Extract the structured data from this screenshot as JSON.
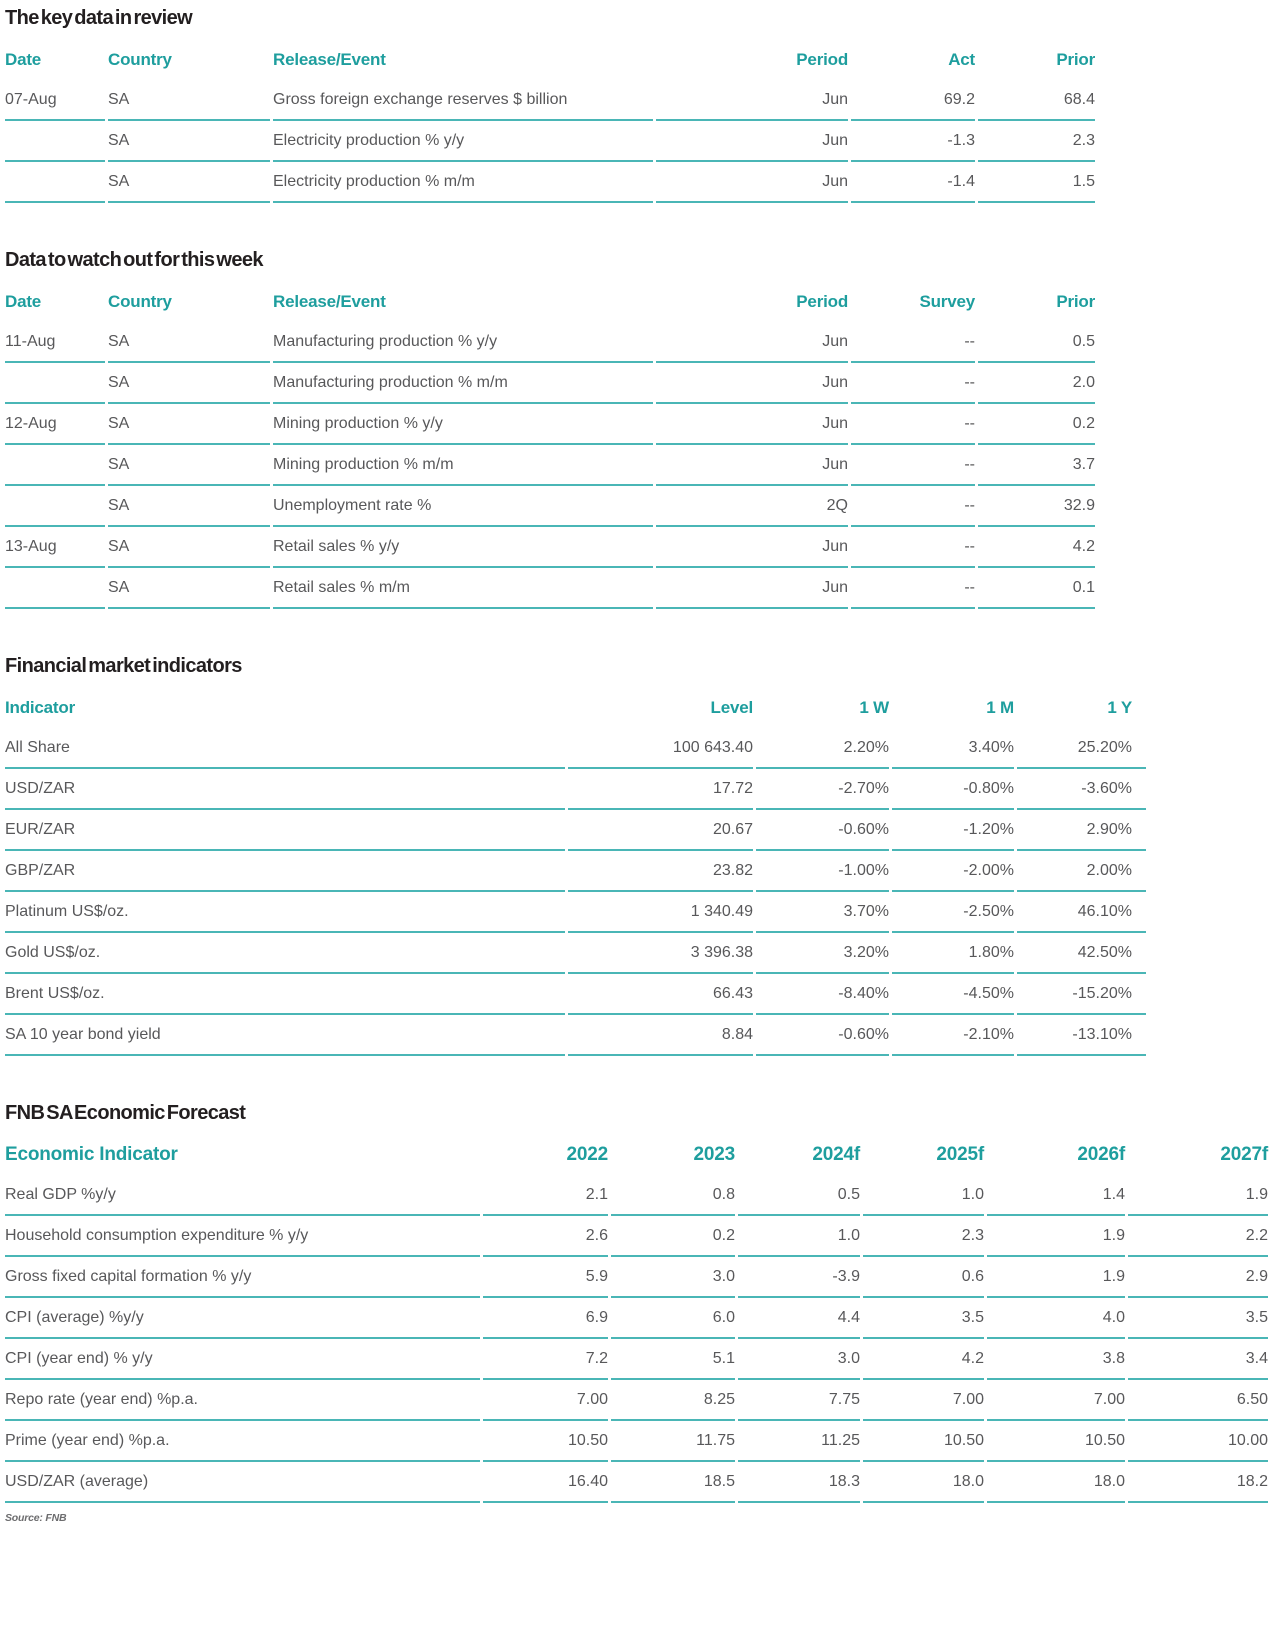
{
  "colors": {
    "accent_teal": "#1e9e9e",
    "rule_teal": "#4ab6b6",
    "body_text": "#58585a",
    "title_text": "#231f20"
  },
  "key_data_review": {
    "title": "The key data in review",
    "columns": [
      "Date",
      "Country",
      "Release/Event",
      "Period",
      "Act",
      "Prior"
    ],
    "rows": [
      [
        "07-Aug",
        "SA",
        "Gross foreign exchange reserves $ billion",
        "Jun",
        "69.2",
        "68.4"
      ],
      [
        "",
        "SA",
        "Electricity production % y/y",
        "Jun",
        "-1.3",
        "2.3"
      ],
      [
        "",
        "SA",
        "Electricity production % m/m",
        "Jun",
        "-1.4",
        "1.5"
      ]
    ]
  },
  "week_ahead": {
    "title": "Data to watch out for this week",
    "columns": [
      "Date",
      "Country",
      "Release/Event",
      "Period",
      "Survey",
      "Prior"
    ],
    "rows": [
      [
        "11-Aug",
        "SA",
        "Manufacturing production % y/y",
        "Jun",
        "--",
        "0.5"
      ],
      [
        "",
        "SA",
        "Manufacturing production % m/m",
        "Jun",
        "--",
        "2.0"
      ],
      [
        "12-Aug",
        "SA",
        "Mining production % y/y",
        "Jun",
        "--",
        "0.2"
      ],
      [
        "",
        "SA",
        "Mining production % m/m",
        "Jun",
        "--",
        "3.7"
      ],
      [
        "",
        "SA",
        "Unemployment rate %",
        "2Q",
        "--",
        "32.9"
      ],
      [
        "13-Aug",
        "SA",
        "Retail sales % y/y",
        "Jun",
        "--",
        "4.2"
      ],
      [
        "",
        "SA",
        "Retail sales % m/m",
        "Jun",
        "--",
        "0.1"
      ]
    ]
  },
  "market_indicators": {
    "title": "Financial market indicators",
    "columns": [
      "Indicator",
      "Level",
      "1 W",
      "1 M",
      "1 Y"
    ],
    "rows": [
      [
        "All Share",
        "100 643.40",
        "2.20%",
        "3.40%",
        "25.20%"
      ],
      [
        "USD/ZAR",
        "17.72",
        "-2.70%",
        "-0.80%",
        "-3.60%"
      ],
      [
        "EUR/ZAR",
        "20.67",
        "-0.60%",
        "-1.20%",
        "2.90%"
      ],
      [
        "GBP/ZAR",
        "23.82",
        "-1.00%",
        "-2.00%",
        "2.00%"
      ],
      [
        "Platinum US$/oz.",
        "1 340.49",
        "3.70%",
        "-2.50%",
        "46.10%"
      ],
      [
        "Gold US$/oz.",
        "3 396.38",
        "3.20%",
        "1.80%",
        "42.50%"
      ],
      [
        "Brent US$/oz.",
        "66.43",
        "-8.40%",
        "-4.50%",
        "-15.20%"
      ],
      [
        "SA 10 year bond yield",
        "8.84",
        "-0.60%",
        "-2.10%",
        "-13.10%"
      ]
    ]
  },
  "economic_forecast": {
    "title": "FNB SA Economic Forecast",
    "columns": [
      "Economic Indicator",
      "2022",
      "2023",
      "2024f",
      "2025f",
      "2026f",
      "2027f"
    ],
    "rows": [
      [
        "Real GDP %y/y",
        "2.1",
        "0.8",
        "0.5",
        "1.0",
        "1.4",
        "1.9"
      ],
      [
        "Household consumption expenditure % y/y",
        "2.6",
        "0.2",
        "1.0",
        "2.3",
        "1.9",
        "2.2"
      ],
      [
        "Gross fixed capital formation % y/y",
        "5.9",
        "3.0",
        "-3.9",
        "0.6",
        "1.9",
        "2.9"
      ],
      [
        "CPI (average) %y/y",
        "6.9",
        "6.0",
        "4.4",
        "3.5",
        "4.0",
        "3.5"
      ],
      [
        "CPI (year end) % y/y",
        "7.2",
        "5.1",
        "3.0",
        "4.2",
        "3.8",
        "3.4"
      ],
      [
        "Repo rate (year end) %p.a.",
        "7.00",
        "8.25",
        "7.75",
        "7.00",
        "7.00",
        "6.50"
      ],
      [
        "Prime (year end) %p.a.",
        "10.50",
        "11.75",
        "11.25",
        "10.50",
        "10.50",
        "10.00"
      ],
      [
        "USD/ZAR (average)",
        "16.40",
        "18.5",
        "18.3",
        "18.0",
        "18.0",
        "18.2"
      ]
    ]
  },
  "footer": {
    "source_note": "Source: FNB"
  }
}
